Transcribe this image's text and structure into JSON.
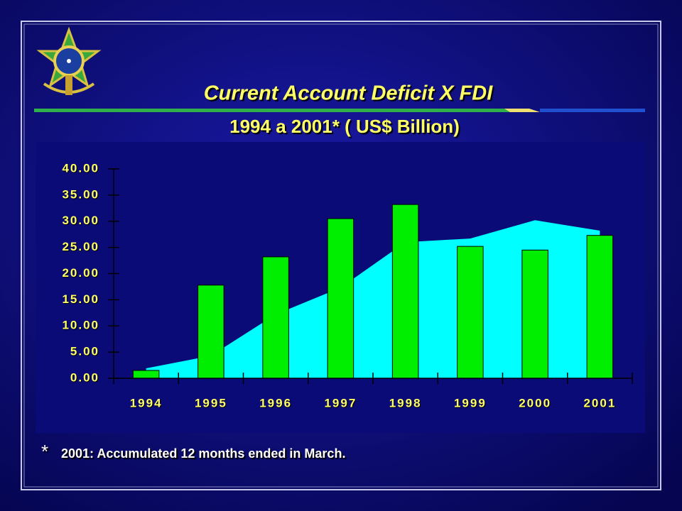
{
  "chart_data": {
    "type": "bar",
    "title": "Current Account Deficit X FDI",
    "subtitle": "1994 a 2001*   ( US$ Billion)",
    "footnote": {
      "marker": "*",
      "text": "2001: Accumulated 12 months ended in March."
    },
    "categories": [
      "1994",
      "1995",
      "1996",
      "1997",
      "1998",
      "1999",
      "2000",
      "2001"
    ],
    "series": [
      {
        "type": "area",
        "color": "#00ffff",
        "values": [
          1.9,
          4.3,
          12.2,
          17.3,
          26.0,
          26.7,
          30.2,
          28.2
        ]
      },
      {
        "type": "bar",
        "color": "#00ee00",
        "values": [
          1.5,
          17.8,
          23.2,
          30.5,
          33.2,
          25.2,
          24.5,
          27.3
        ]
      }
    ],
    "ylim": [
      0,
      40
    ],
    "yticks": [
      {
        "value": 0,
        "label": "0.00"
      },
      {
        "value": 5,
        "label": "5.00"
      },
      {
        "value": 10,
        "label": "10.00"
      },
      {
        "value": 15,
        "label": "15.00"
      },
      {
        "value": 20,
        "label": "20.00"
      },
      {
        "value": 25,
        "label": "25.00"
      },
      {
        "value": 30,
        "label": "30.00"
      },
      {
        "value": 35,
        "label": "35.00"
      },
      {
        "value": 40,
        "label": "40.00"
      }
    ]
  }
}
